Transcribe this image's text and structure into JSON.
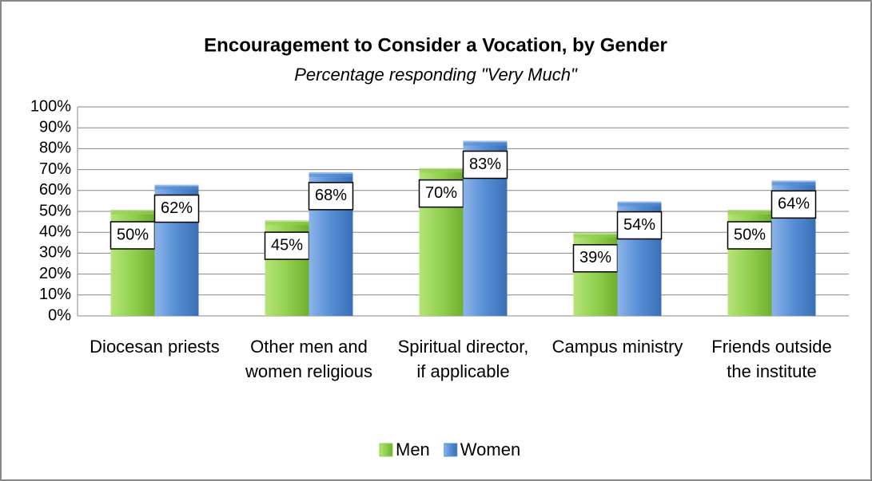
{
  "chart_data": {
    "type": "bar",
    "title": "Encouragement to Consider a Vocation, by Gender",
    "subtitle": "Percentage responding \"Very Much\"",
    "categories": [
      "Diocesan priests",
      "Other men and women religious",
      "Spiritual director, if applicable",
      "Campus ministry",
      "Friends outside the institute"
    ],
    "series": [
      {
        "name": "Men",
        "color": "#92d050",
        "values": [
          50,
          45,
          70,
          39,
          50
        ],
        "value_labels": [
          "50%",
          "45%",
          "70%",
          "39%",
          "50%"
        ]
      },
      {
        "name": "Women",
        "color": "#558ed5",
        "values": [
          62,
          68,
          83,
          54,
          64
        ],
        "value_labels": [
          "62%",
          "68%",
          "83%",
          "54%",
          "64%"
        ]
      }
    ],
    "ylim": [
      0,
      100
    ],
    "yticks": [
      {
        "value": 0,
        "label": "0%"
      },
      {
        "value": 10,
        "label": "10%"
      },
      {
        "value": 20,
        "label": "20%"
      },
      {
        "value": 30,
        "label": "30%"
      },
      {
        "value": 40,
        "label": "40%"
      },
      {
        "value": 50,
        "label": "50%"
      },
      {
        "value": 60,
        "label": "60%"
      },
      {
        "value": 70,
        "label": "70%"
      },
      {
        "value": 80,
        "label": "80%"
      },
      {
        "value": 90,
        "label": "90%"
      },
      {
        "value": 100,
        "label": "100%"
      }
    ],
    "grid": true,
    "legend": "bottom"
  }
}
